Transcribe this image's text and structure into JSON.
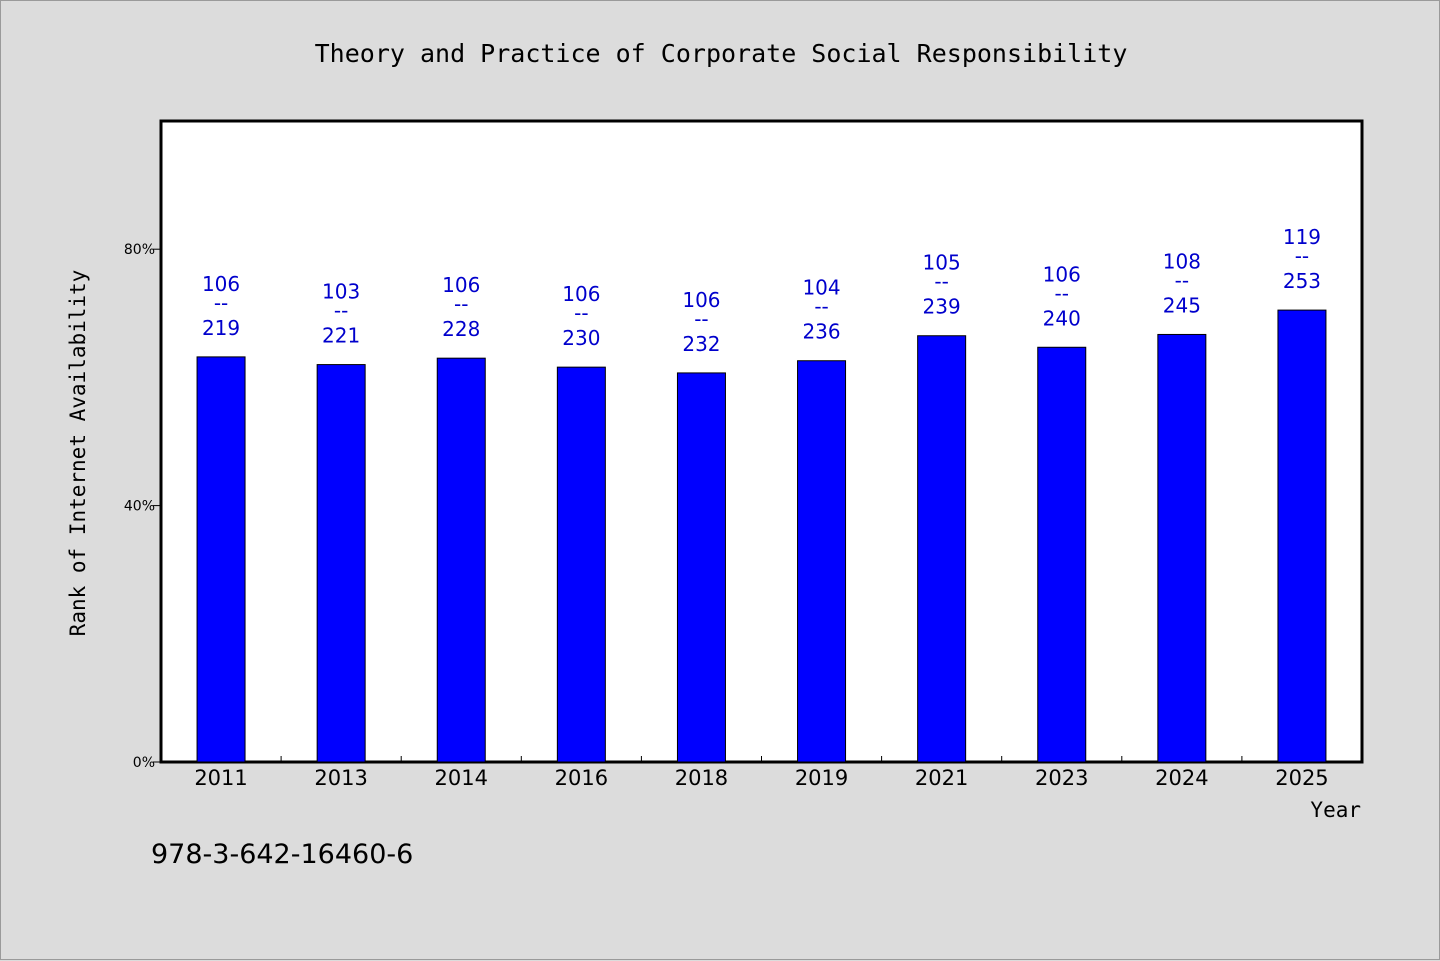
{
  "chart_data": {
    "type": "bar",
    "title": "Theory and Practice of Corporate Social Responsibility",
    "xlabel": "Year",
    "ylabel": "Rank of Internet Availability",
    "categories": [
      "2011",
      "2013",
      "2014",
      "2016",
      "2018",
      "2019",
      "2021",
      "2023",
      "2024",
      "2025"
    ],
    "values": [
      63.2,
      62.0,
      63.0,
      61.6,
      60.7,
      62.6,
      66.5,
      64.7,
      66.7,
      70.5
    ],
    "value_format": "percent",
    "ylim": [
      0,
      100
    ],
    "yticks": [
      {
        "value": 0,
        "label": "0%"
      },
      {
        "value": 40,
        "label": "40%"
      },
      {
        "value": 80,
        "label": "80%"
      }
    ],
    "data_labels": [
      {
        "top": "106",
        "sep": "--",
        "bottom": "219"
      },
      {
        "top": "103",
        "sep": "--",
        "bottom": "221"
      },
      {
        "top": "106",
        "sep": "--",
        "bottom": "228"
      },
      {
        "top": "106",
        "sep": "--",
        "bottom": "230"
      },
      {
        "top": "106",
        "sep": "--",
        "bottom": "232"
      },
      {
        "top": "104",
        "sep": "--",
        "bottom": "236"
      },
      {
        "top": "105",
        "sep": "--",
        "bottom": "239"
      },
      {
        "top": "106",
        "sep": "--",
        "bottom": "240"
      },
      {
        "top": "108",
        "sep": "--",
        "bottom": "245"
      },
      {
        "top": "119",
        "sep": "--",
        "bottom": "253"
      }
    ],
    "grid": false,
    "legend": "none",
    "colors": {
      "bar": "#0000ff",
      "label": "#0000cc",
      "plot_background": "#ffffff",
      "page_background": "#dcdcdc"
    }
  },
  "footer": {
    "isbn": "978-3-642-16460-6"
  }
}
